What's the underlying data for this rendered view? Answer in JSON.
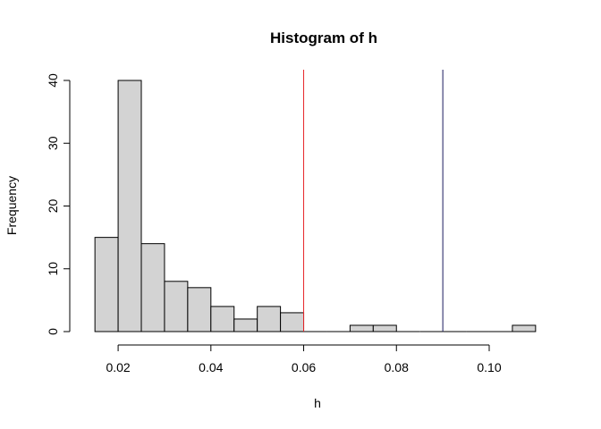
{
  "chart_data": {
    "type": "bar",
    "title": "Histogram of h",
    "xlabel": "h",
    "ylabel": "Frequency",
    "bin_edges": [
      0.015,
      0.02,
      0.025,
      0.03,
      0.035,
      0.04,
      0.045,
      0.05,
      0.055,
      0.06,
      0.065,
      0.07,
      0.075,
      0.08,
      0.085,
      0.09,
      0.095,
      0.1,
      0.105,
      0.11
    ],
    "counts": [
      15,
      40,
      14,
      8,
      7,
      4,
      2,
      4,
      3,
      0,
      0,
      1,
      1,
      0,
      0,
      0,
      0,
      0,
      1
    ],
    "xticks": [
      0.02,
      0.04,
      0.06,
      0.08,
      0.1
    ],
    "xtick_labels": [
      "0.02",
      "0.04",
      "0.06",
      "0.08",
      "0.10"
    ],
    "yticks": [
      0,
      10,
      20,
      30,
      40
    ],
    "ytick_labels": [
      "0",
      "10",
      "20",
      "30",
      "40"
    ],
    "xlim": [
      0.0115,
      0.1135
    ],
    "ylim": [
      0,
      40
    ],
    "vlines": [
      {
        "x": 0.06,
        "color": "#e8262a"
      },
      {
        "x": 0.09,
        "color": "#1a1a5e"
      }
    ],
    "bar_fill": "#d3d3d3",
    "grid": false
  }
}
